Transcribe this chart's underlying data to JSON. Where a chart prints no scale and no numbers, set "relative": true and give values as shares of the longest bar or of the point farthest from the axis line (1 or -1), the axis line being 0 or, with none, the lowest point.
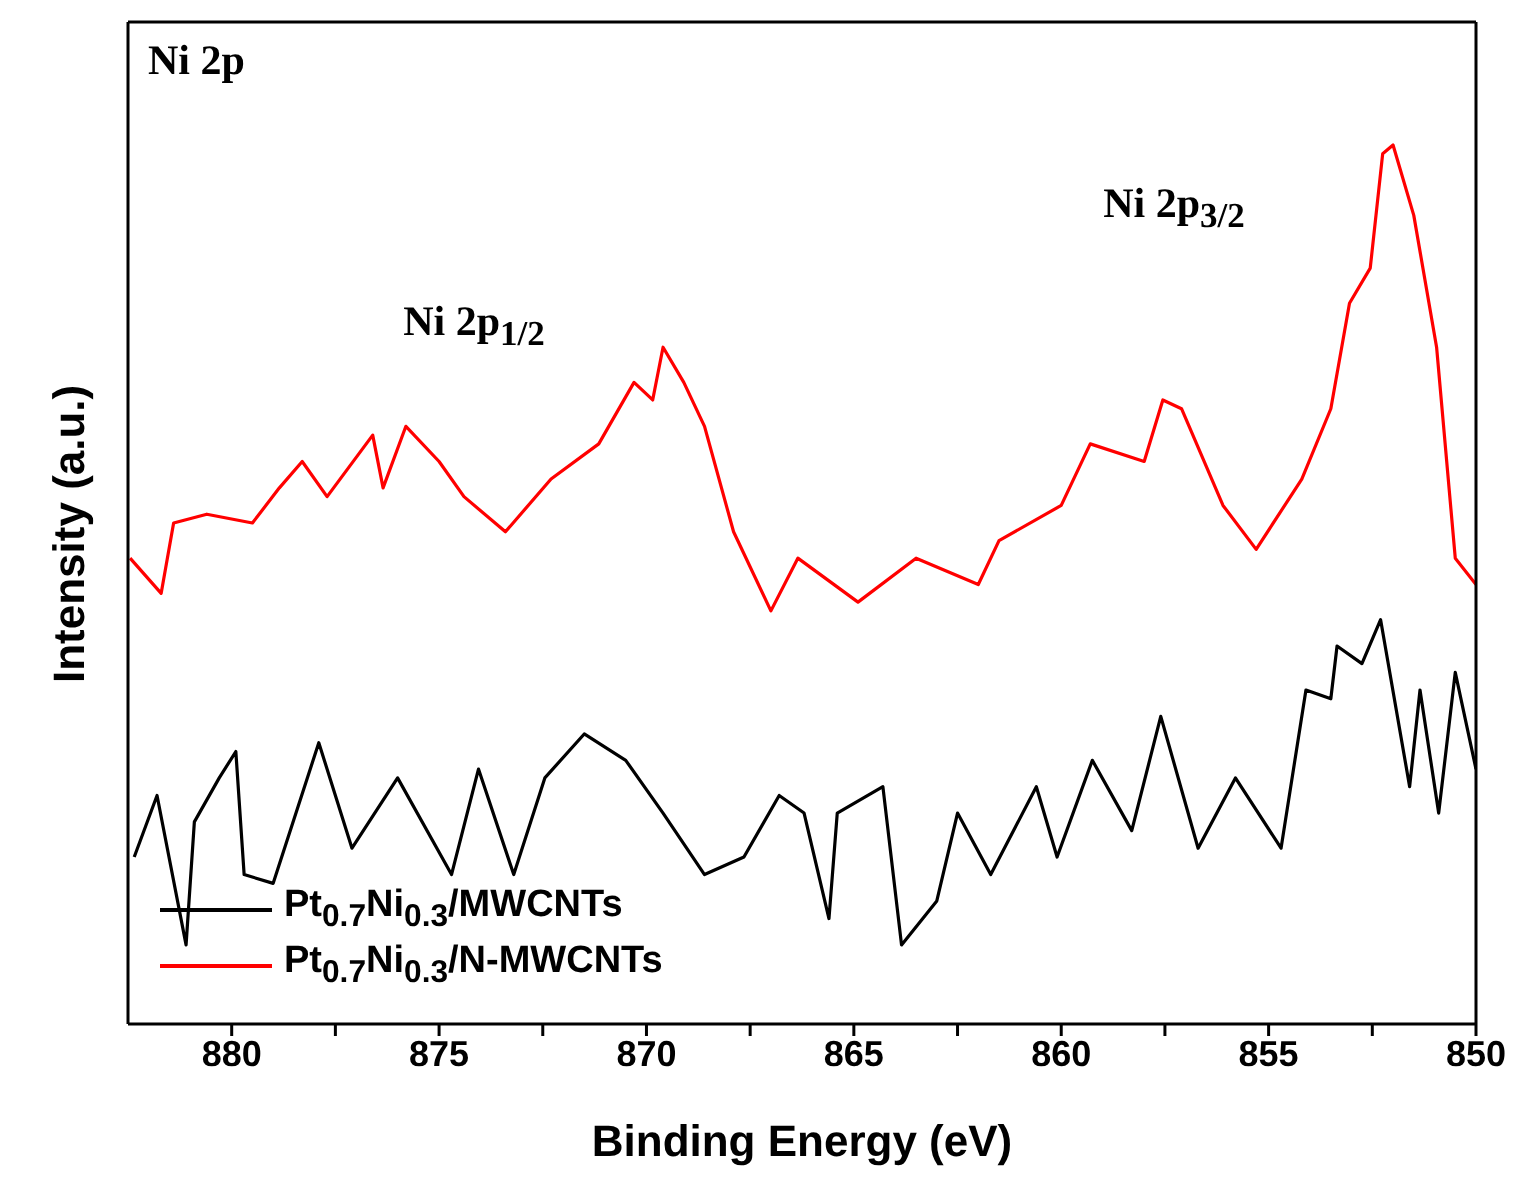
{
  "chart_data": {
    "type": "line",
    "title": "Ni 2p",
    "xlabel": "Binding Energy (eV)",
    "ylabel": "Intensity (a.u.)",
    "relative": true,
    "xlim": [
      882.5,
      850
    ],
    "xticks": [
      880,
      {
        "value": 877.5,
        "label": null
      },
      875,
      {
        "value": 872.5,
        "label": null
      },
      870,
      {
        "value": 867.5,
        "label": null
      },
      865,
      {
        "value": 862.5,
        "label": null
      },
      860,
      {
        "value": 857.5,
        "label": null
      },
      855,
      {
        "value": 852.5,
        "label": null
      },
      850
    ],
    "legend": "bottom left",
    "marker": "none",
    "line_style": "solid",
    "annotations": [
      "Ni 2p$_{1/2}$",
      "Ni 2p$_{3/2}$"
    ],
    "series": [
      {
        "name": "Pt$_{0.7}$Ni$_{0.3}$/MWCNTs",
        "color": "#000000",
        "x": [
          882.35,
          881.8,
          881.1,
          880.9,
          880.3,
          879.9,
          879.7,
          879.0,
          877.9,
          877.1,
          876.0,
          874.7,
          874.05,
          873.2,
          872.45,
          871.5,
          870.5,
          869.6,
          868.6,
          867.65,
          866.8,
          866.2,
          865.6,
          865.4,
          864.3,
          863.85,
          863.0,
          862.5,
          861.7,
          860.6,
          860.1,
          859.25,
          858.3,
          857.6,
          856.7,
          855.8,
          854.7,
          854.1,
          853.5,
          853.35,
          852.75,
          852.3,
          851.6,
          851.35,
          850.9,
          850.5,
          850.0
        ],
        "values": [
          0.19,
          0.26,
          0.09,
          0.23,
          0.28,
          0.31,
          0.17,
          0.16,
          0.32,
          0.2,
          0.28,
          0.17,
          0.29,
          0.17,
          0.28,
          0.33,
          0.3,
          0.24,
          0.17,
          0.19,
          0.26,
          0.24,
          0.12,
          0.24,
          0.27,
          0.09,
          0.14,
          0.24,
          0.17,
          0.27,
          0.19,
          0.3,
          0.22,
          0.35,
          0.2,
          0.28,
          0.2,
          0.38,
          0.37,
          0.43,
          0.41,
          0.46,
          0.27,
          0.38,
          0.24,
          0.4,
          0.29
        ]
      },
      {
        "name": "Pt$_{0.7}$Ni$_{0.3}$/N-MWCNTs",
        "color": "#ff0000",
        "x": [
          882.45,
          881.7,
          881.4,
          880.6,
          879.5,
          878.85,
          878.3,
          877.7,
          876.6,
          876.35,
          875.8,
          875.0,
          874.4,
          873.4,
          872.3,
          871.15,
          870.3,
          869.85,
          869.6,
          869.1,
          868.6,
          867.9,
          867.0,
          866.35,
          864.9,
          863.5,
          862.0,
          861.5,
          860.0,
          859.3,
          858.0,
          857.55,
          857.1,
          856.1,
          855.3,
          854.2,
          853.5,
          853.05,
          852.55,
          852.25,
          852.0,
          851.5,
          850.95,
          850.5,
          850.0
        ],
        "values": [
          0.53,
          0.49,
          0.57,
          0.58,
          0.57,
          0.61,
          0.64,
          0.6,
          0.67,
          0.61,
          0.68,
          0.64,
          0.6,
          0.56,
          0.62,
          0.66,
          0.73,
          0.71,
          0.77,
          0.73,
          0.68,
          0.56,
          0.47,
          0.53,
          0.48,
          0.53,
          0.5,
          0.55,
          0.59,
          0.66,
          0.64,
          0.71,
          0.7,
          0.59,
          0.54,
          0.62,
          0.7,
          0.82,
          0.86,
          0.99,
          1,
          0.92,
          0.77,
          0.53,
          0.5
        ]
      }
    ]
  }
}
